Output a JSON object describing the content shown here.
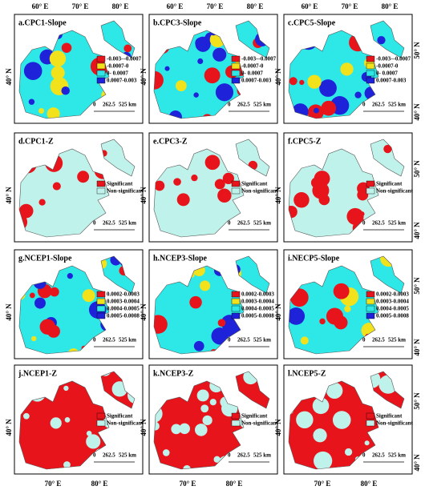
{
  "axes": {
    "top": [
      "60° E",
      "70° E",
      "80° E"
    ],
    "bottom": [
      "70° E",
      "80° E"
    ],
    "left": "40° N",
    "right": [
      "50° N",
      "40° N"
    ]
  },
  "scale_bar": [
    "0",
    "262.5",
    "525 km"
  ],
  "legends": [
    {
      "items": [
        {
          "label": "-0.003–-0.0007",
          "color": "#e8141c"
        },
        {
          "label": "-0.0007-0",
          "color": "#f2e21c"
        },
        {
          "label": "0- 0.0007",
          "color": "#2ee8e8"
        },
        {
          "label": "0.0007-0.003",
          "color": "#1e22d8"
        }
      ]
    },
    {
      "items": [
        {
          "label": "Significant",
          "color": "#e8141c"
        },
        {
          "label": "Non-significant",
          "color": "#bff2ea"
        }
      ]
    },
    {
      "items": [
        {
          "label": "0.0002-0.0003",
          "color": "#e8141c"
        },
        {
          "label": "0.0003-0.0004",
          "color": "#f2e21c"
        },
        {
          "label": "0.0004-0.0005",
          "color": "#2ee8e8"
        },
        {
          "label": "0.0005-0.0008",
          "color": "#1e22d8"
        }
      ]
    }
  ],
  "panels": [
    {
      "title": "a.CPC1-Slope",
      "legend": 0,
      "base": 2
    },
    {
      "title": "b.CPC3-Slope",
      "legend": 0,
      "base": 2
    },
    {
      "title": "c.CPC5-Slope",
      "legend": 0,
      "base": 2
    },
    {
      "title": "d.CPC1-Z",
      "legend": 1,
      "base": 1
    },
    {
      "title": "e.CPC3-Z",
      "legend": 1,
      "base": 1
    },
    {
      "title": "f.CPC5-Z",
      "legend": 1,
      "base": 1
    },
    {
      "title": "g.NCEP1-Slope",
      "legend": 2,
      "base": 2
    },
    {
      "title": "h.NCEP3-Slope",
      "legend": 2,
      "base": 2
    },
    {
      "title": "i.NECP5-Slope",
      "legend": 2,
      "base": 2
    },
    {
      "title": "j.NCEP1-Z",
      "legend": 1,
      "base": 0
    },
    {
      "title": "k.NCEP3-Z",
      "legend": 1,
      "base": 0
    },
    {
      "title": "l.NCEP5-Z",
      "legend": 1,
      "base": 0
    }
  ]
}
